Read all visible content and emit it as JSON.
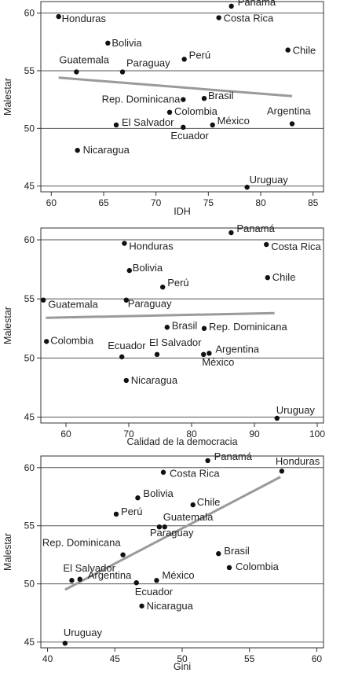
{
  "chart_data": [
    {
      "type": "scatter",
      "xlabel": "IDH",
      "ylabel": "Malestar",
      "xlim": [
        59,
        86
      ],
      "ylim": [
        44.5,
        61
      ],
      "xticks": [
        60,
        65,
        70,
        75,
        80,
        85
      ],
      "yticks": [
        45,
        50,
        55,
        60
      ],
      "grid": "horizontal",
      "trend": [
        {
          "x": 60.7,
          "y": 54.4
        },
        {
          "x": 83.0,
          "y": 52.8
        }
      ],
      "points": [
        {
          "label": "Panamá",
          "x": 77.2,
          "y": 60.6
        },
        {
          "label": "Honduras",
          "x": 60.7,
          "y": 59.7
        },
        {
          "label": "Costa Rica",
          "x": 76.0,
          "y": 59.6
        },
        {
          "label": "Bolivia",
          "x": 65.4,
          "y": 57.4
        },
        {
          "label": "Chile",
          "x": 82.6,
          "y": 56.8
        },
        {
          "label": "Perú",
          "x": 72.7,
          "y": 56.0
        },
        {
          "label": "Guatemala",
          "x": 62.4,
          "y": 54.9
        },
        {
          "label": "Paraguay",
          "x": 66.8,
          "y": 54.9
        },
        {
          "label": "Rep. Dominicana",
          "x": 72.6,
          "y": 52.5
        },
        {
          "label": "Brasil",
          "x": 74.6,
          "y": 52.6
        },
        {
          "label": "Colombia",
          "x": 71.3,
          "y": 51.4
        },
        {
          "label": "Argentina",
          "x": 83.0,
          "y": 50.4
        },
        {
          "label": "El Salvador",
          "x": 66.2,
          "y": 50.3
        },
        {
          "label": "México",
          "x": 75.4,
          "y": 50.3
        },
        {
          "label": "Ecuador",
          "x": 72.6,
          "y": 50.1
        },
        {
          "label": "Nicaragua",
          "x": 62.5,
          "y": 48.1
        },
        {
          "label": "Uruguay",
          "x": 78.7,
          "y": 44.9
        }
      ]
    },
    {
      "type": "scatter",
      "xlabel": "Calidad de la democracia",
      "ylabel": "Malestar",
      "xlim": [
        56,
        101
      ],
      "ylim": [
        44.5,
        61
      ],
      "xticks": [
        60,
        70,
        80,
        90,
        100
      ],
      "yticks": [
        45,
        50,
        55,
        60
      ],
      "grid": "horizontal",
      "trend": [
        {
          "x": 56.8,
          "y": 53.4
        },
        {
          "x": 93.2,
          "y": 53.8
        }
      ],
      "points": [
        {
          "label": "Panamá",
          "x": 86.3,
          "y": 60.6
        },
        {
          "label": "Honduras",
          "x": 69.3,
          "y": 59.7
        },
        {
          "label": "Costa Rica",
          "x": 91.9,
          "y": 59.6
        },
        {
          "label": "Bolivia",
          "x": 70.1,
          "y": 57.4
        },
        {
          "label": "Chile",
          "x": 92.1,
          "y": 56.8
        },
        {
          "label": "Perú",
          "x": 75.4,
          "y": 56.0
        },
        {
          "label": "Guatemala",
          "x": 56.4,
          "y": 54.9
        },
        {
          "label": "Paraguay",
          "x": 69.6,
          "y": 54.9
        },
        {
          "label": "Brasil",
          "x": 76.1,
          "y": 52.6
        },
        {
          "label": "Rep. Dominicana",
          "x": 82.0,
          "y": 52.5
        },
        {
          "label": "Colombia",
          "x": 56.9,
          "y": 51.4
        },
        {
          "label": "Ecuador",
          "x": 68.9,
          "y": 50.1
        },
        {
          "label": "El Salvador",
          "x": 74.5,
          "y": 50.3
        },
        {
          "label": "Argentina",
          "x": 82.8,
          "y": 50.4
        },
        {
          "label": "México",
          "x": 81.9,
          "y": 50.3
        },
        {
          "label": "Nicaragua",
          "x": 69.6,
          "y": 48.1
        },
        {
          "label": "Uruguay",
          "x": 93.6,
          "y": 44.9
        }
      ]
    },
    {
      "type": "scatter",
      "xlabel": "Gini",
      "ylabel": "Malestar",
      "xlim": [
        39.5,
        60.5
      ],
      "ylim": [
        44.5,
        61
      ],
      "xticks": [
        40,
        45,
        50,
        55,
        60
      ],
      "yticks": [
        45,
        50,
        55,
        60
      ],
      "grid": "horizontal",
      "trend": [
        {
          "x": 41.3,
          "y": 49.5
        },
        {
          "x": 57.3,
          "y": 59.2
        }
      ],
      "points": [
        {
          "label": "Panamá",
          "x": 51.9,
          "y": 60.6
        },
        {
          "label": "Honduras",
          "x": 57.4,
          "y": 59.7
        },
        {
          "label": "Costa Rica",
          "x": 48.6,
          "y": 59.6
        },
        {
          "label": "Bolivia",
          "x": 46.7,
          "y": 57.4
        },
        {
          "label": "Chile",
          "x": 50.8,
          "y": 56.8
        },
        {
          "label": "Perú",
          "x": 45.1,
          "y": 56.0
        },
        {
          "label": "Guatemala",
          "x": 48.7,
          "y": 54.9
        },
        {
          "label": "Paraguay",
          "x": 48.3,
          "y": 54.9
        },
        {
          "label": "Rep. Dominicana",
          "x": 45.6,
          "y": 52.5
        },
        {
          "label": "Brasil",
          "x": 52.7,
          "y": 52.6
        },
        {
          "label": "Colombia",
          "x": 53.5,
          "y": 51.4
        },
        {
          "label": "El Salvador",
          "x": 41.8,
          "y": 50.3
        },
        {
          "label": "Argentina",
          "x": 42.4,
          "y": 50.4
        },
        {
          "label": "México",
          "x": 48.1,
          "y": 50.3
        },
        {
          "label": "Ecuador",
          "x": 46.6,
          "y": 50.1
        },
        {
          "label": "Nicaragua",
          "x": 47.0,
          "y": 48.1
        },
        {
          "label": "Uruguay",
          "x": 41.3,
          "y": 44.9
        }
      ]
    }
  ]
}
